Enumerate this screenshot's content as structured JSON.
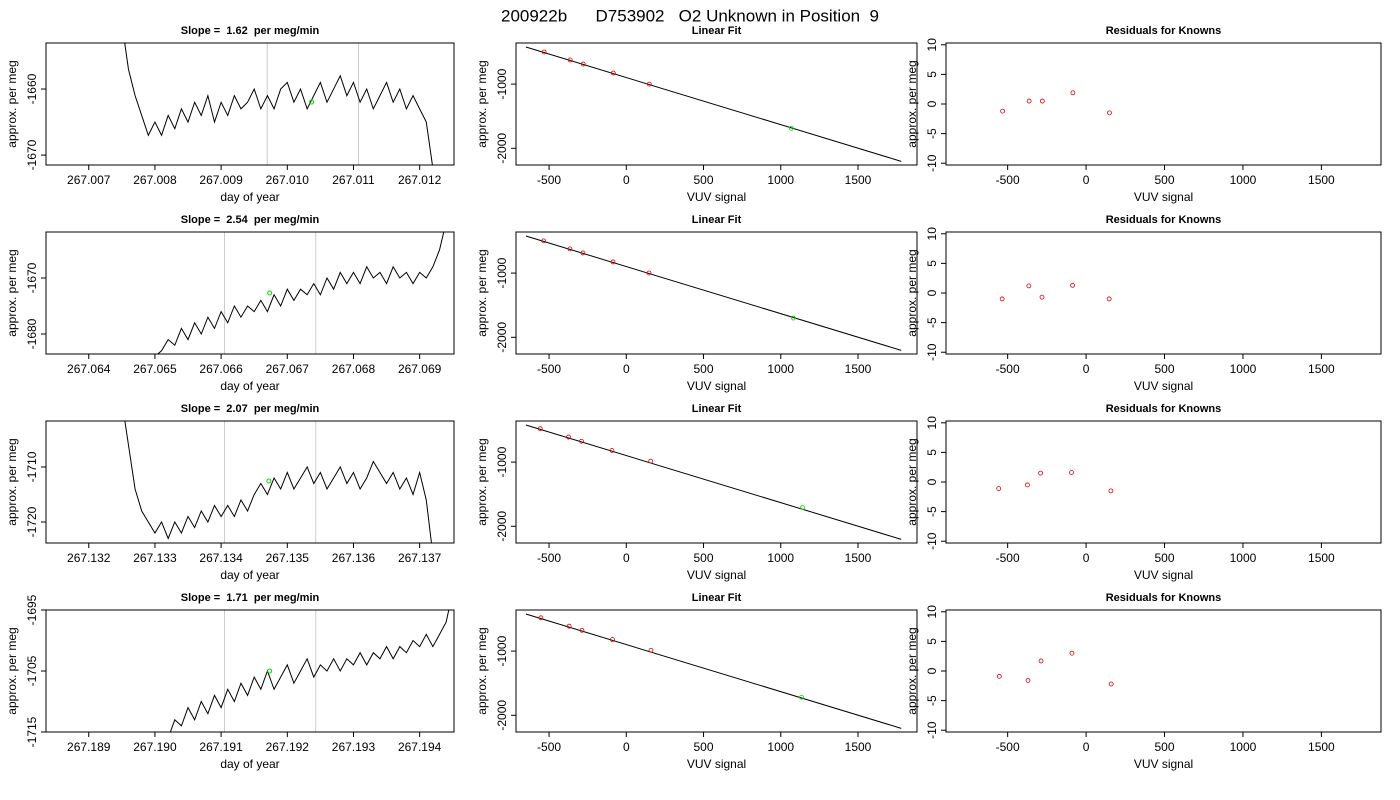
{
  "title": "200922b      D753902   O2 Unknown in Position  9",
  "chart_data": [
    {
      "type": "line",
      "title": "Slope =  1.62  per meg/min",
      "xlabel": "day of year",
      "ylabel": "approx. per meg",
      "x": [
        267.0075,
        267.0076,
        267.0077,
        267.0078,
        267.0079,
        267.008,
        267.0081,
        267.0082,
        267.0083,
        267.0084,
        267.0085,
        267.0086,
        267.0087,
        267.0088,
        267.0089,
        267.009,
        267.0091,
        267.0092,
        267.0093,
        267.0094,
        267.0095,
        267.0096,
        267.0097,
        267.0098,
        267.0099,
        267.01,
        267.0101,
        267.0102,
        267.0103,
        267.0104,
        267.0105,
        267.0106,
        267.0107,
        267.0108,
        267.0109,
        267.011,
        267.0111,
        267.0112,
        267.0113,
        267.0114,
        267.0115,
        267.0116,
        267.0117,
        267.0118,
        267.0119,
        267.012,
        267.0121,
        267.0122
      ],
      "series": [
        {
          "color": "#000000",
          "values": [
            -1650,
            -1657,
            -1661,
            -1664,
            -1667,
            -1665,
            -1667,
            -1664,
            -1666,
            -1663,
            -1665,
            -1662,
            -1664,
            -1661,
            -1665,
            -1662,
            -1664,
            -1661,
            -1663,
            -1662,
            -1660,
            -1663,
            -1661,
            -1663,
            -1660,
            -1659,
            -1662,
            -1660,
            -1663,
            -1661,
            -1659,
            -1662,
            -1660,
            -1658,
            -1661,
            -1659,
            -1662,
            -1660,
            -1663,
            -1661,
            -1659,
            -1662,
            -1660,
            -1663,
            -1661,
            -1663,
            -1665,
            -1672
          ]
        }
      ],
      "markers": {
        "color": "#00dd00",
        "x": [
          267.010367
        ],
        "values": [
          -1661.97
        ]
      },
      "vlines": [
        267.009696,
        267.011076
      ],
      "vline_color": "#cccccc",
      "xlim": [
        267.006354,
        267.012519
      ],
      "ylim": [
        -1671.5,
        -1653.03
      ],
      "xticks": [
        267.007,
        267.008,
        267.009,
        {
          "value": 267.01,
          "label": "267.010"
        },
        267.011,
        267.012
      ],
      "yticks": [
        -1660,
        -1670
      ]
    },
    {
      "type": "scatter",
      "title": "Linear Fit",
      "xlabel": "VUV signal",
      "ylabel": "approx. per meg",
      "fit_line": {
        "color": "#000000",
        "x": [
          -650,
          1780
        ],
        "values": [
          -422,
          -2203
        ]
      },
      "series": [
        {
          "color": "#dd0000",
          "x": [
            -532,
            -363,
            -279,
            -84,
            149
          ],
          "values": [
            -500,
            -625,
            -688,
            -828,
            -1000
          ]
        },
        {
          "color": "#00dd00",
          "x": [
            1069
          ],
          "values": [
            -1688
          ]
        }
      ],
      "xlim": [
        -714,
        1882
      ],
      "ylim": [
        -2260,
        -360
      ],
      "xticks": [
        -500,
        0,
        500,
        1000,
        1500
      ],
      "yticks": [
        -1000,
        -2000
      ]
    },
    {
      "type": "scatter",
      "title": "Residuals for Knowns",
      "xlabel": "VUV signal",
      "ylabel": "approx. per meg",
      "series": [
        {
          "color": "#dd0000",
          "x": [
            -532,
            -363,
            -279,
            -84,
            149
          ],
          "values": [
            -1.2,
            0.5,
            0.5,
            1.9,
            -1.5
          ]
        }
      ],
      "xlim": [
        -893,
        1880
      ],
      "ylim": [
        -10.3,
        10.3
      ],
      "xticks": [
        -500,
        0,
        500,
        1000,
        1500
      ],
      "yticks": [
        -10,
        -5,
        0,
        5,
        10
      ]
    },
    {
      "type": "line",
      "title": "Slope =  2.54  per meg/min",
      "xlabel": "day of year",
      "ylabel": "approx. per meg",
      "x": [
        267.065,
        267.0651,
        267.0652,
        267.0653,
        267.0654,
        267.0655,
        267.0656,
        267.0657,
        267.0658,
        267.0659,
        267.066,
        267.0661,
        267.0662,
        267.0663,
        267.0664,
        267.0665,
        267.0666,
        267.0667,
        267.0668,
        267.0669,
        267.067,
        267.0671,
        267.0672,
        267.0673,
        267.0674,
        267.0675,
        267.0676,
        267.0677,
        267.0678,
        267.0679,
        267.068,
        267.0681,
        267.0682,
        267.0683,
        267.0684,
        267.0685,
        267.0686,
        267.0687,
        267.0688,
        267.0689,
        267.069,
        267.0691,
        267.0692,
        267.0693,
        267.0694
      ],
      "series": [
        {
          "color": "#000000",
          "values": [
            -1684,
            -1683,
            -1681,
            -1682,
            -1679,
            -1681,
            -1678,
            -1680,
            -1677,
            -1679,
            -1676,
            -1678,
            -1675,
            -1677,
            -1675,
            -1676,
            -1674,
            -1676,
            -1673,
            -1675,
            -1672,
            -1674,
            -1672,
            -1673,
            -1671,
            -1673,
            -1670,
            -1672,
            -1669,
            -1671,
            -1669,
            -1671,
            -1668,
            -1670,
            -1669,
            -1671,
            -1668,
            -1670,
            -1669,
            -1671,
            -1669,
            -1670,
            -1668,
            -1665,
            -1660
          ]
        }
      ],
      "markers": {
        "color": "#00dd00",
        "x": [
          267.066734
        ],
        "values": [
          -1672.68
        ]
      },
      "vlines": [
        267.066051,
        267.06743
      ],
      "vline_color": "#cccccc",
      "xlim": [
        267.063354,
        267.069519
      ],
      "ylim": [
        -1683.57,
        -1661.79
      ],
      "xticks": [
        267.064,
        267.065,
        267.066,
        267.067,
        267.068,
        267.069
      ],
      "yticks": [
        -1670,
        -1680
      ]
    },
    {
      "type": "scatter",
      "title": "Linear Fit",
      "xlabel": "VUV signal",
      "ylabel": "approx. per meg",
      "fit_line": {
        "color": "#000000",
        "x": [
          -650,
          1780
        ],
        "values": [
          -422,
          -2203
        ]
      },
      "series": [
        {
          "color": "#dd0000",
          "x": [
            -535,
            -365,
            -281,
            -86,
            147
          ],
          "values": [
            -498,
            -623,
            -686,
            -826,
            -998
          ]
        },
        {
          "color": "#00dd00",
          "x": [
            1082
          ],
          "values": [
            -1700
          ]
        }
      ],
      "xlim": [
        -714,
        1882
      ],
      "ylim": [
        -2260,
        -360
      ],
      "xticks": [
        -500,
        0,
        500,
        1000,
        1500
      ],
      "yticks": [
        -1000,
        -2000
      ]
    },
    {
      "type": "scatter",
      "title": "Residuals for Knowns",
      "xlabel": "VUV signal",
      "ylabel": "approx. per meg",
      "series": [
        {
          "color": "#dd0000",
          "x": [
            -535,
            -365,
            -281,
            -86,
            147
          ],
          "values": [
            -1.0,
            1.2,
            -0.7,
            1.3,
            -1.0
          ]
        }
      ],
      "xlim": [
        -893,
        1880
      ],
      "ylim": [
        -10.3,
        10.3
      ],
      "xticks": [
        -500,
        0,
        500,
        1000,
        1500
      ],
      "yticks": [
        -10,
        -5,
        0,
        5,
        10
      ]
    },
    {
      "type": "line",
      "title": "Slope =  2.07  per meg/min",
      "xlabel": "day of year",
      "ylabel": "approx. per meg",
      "x": [
        267.1325,
        267.1326,
        267.1327,
        267.1328,
        267.1329,
        267.133,
        267.1331,
        267.1332,
        267.1333,
        267.1334,
        267.1335,
        267.1336,
        267.1337,
        267.1338,
        267.1339,
        267.134,
        267.1341,
        267.1342,
        267.1343,
        267.1344,
        267.1345,
        267.1346,
        267.1347,
        267.1348,
        267.1349,
        267.135,
        267.1351,
        267.1352,
        267.1353,
        267.1354,
        267.1355,
        267.1356,
        267.1357,
        267.1358,
        267.1359,
        267.136,
        267.1361,
        267.1362,
        267.1363,
        267.1364,
        267.1365,
        267.1366,
        267.1367,
        267.1368,
        267.1369,
        267.137,
        267.1371,
        267.1372
      ],
      "series": [
        {
          "color": "#000000",
          "values": [
            -1698,
            -1706,
            -1714,
            -1718,
            -1720,
            -1722,
            -1720,
            -1723,
            -1720,
            -1722,
            -1719,
            -1721,
            -1718,
            -1720,
            -1717,
            -1719,
            -1717,
            -1719,
            -1716,
            -1718,
            -1715,
            -1713,
            -1715,
            -1712,
            -1714,
            -1711,
            -1714,
            -1712,
            -1710,
            -1713,
            -1711,
            -1714,
            -1712,
            -1710,
            -1713,
            -1711,
            -1714,
            -1712,
            -1709,
            -1711,
            -1713,
            -1711,
            -1714,
            -1712,
            -1715,
            -1711,
            -1716,
            -1726
          ]
        }
      ],
      "markers": {
        "color": "#00dd00",
        "x": [
          267.134722
        ],
        "values": [
          -1712.55
        ]
      },
      "vlines": [
        267.134051,
        267.13543
      ],
      "vline_color": "#cccccc",
      "xlim": [
        267.131354,
        267.137519
      ],
      "ylim": [
        -1723.82,
        -1701.64
      ],
      "xticks": [
        267.132,
        267.133,
        267.134,
        267.135,
        267.136,
        267.137
      ],
      "yticks": [
        -1710,
        -1720
      ]
    },
    {
      "type": "scatter",
      "title": "Linear Fit",
      "xlabel": "VUV signal",
      "ylabel": "approx. per meg",
      "fit_line": {
        "color": "#000000",
        "x": [
          -650,
          1780
        ],
        "values": [
          -422,
          -2203
        ]
      },
      "series": [
        {
          "color": "#dd0000",
          "x": [
            -557,
            -374,
            -290,
            -93,
            158
          ],
          "values": [
            -480,
            -610,
            -675,
            -818,
            -985
          ]
        },
        {
          "color": "#00dd00",
          "x": [
            1141
          ],
          "values": [
            -1708
          ]
        }
      ],
      "xlim": [
        -714,
        1882
      ],
      "ylim": [
        -2260,
        -360
      ],
      "xticks": [
        -500,
        0,
        500,
        1000,
        1500
      ],
      "yticks": [
        -1000,
        -2000
      ]
    },
    {
      "type": "scatter",
      "title": "Residuals for Knowns",
      "xlabel": "VUV signal",
      "ylabel": "approx. per meg",
      "series": [
        {
          "color": "#dd0000",
          "x": [
            -557,
            -374,
            -290,
            -93,
            158
          ],
          "values": [
            -1.1,
            -0.5,
            1.5,
            1.6,
            -1.5
          ]
        }
      ],
      "xlim": [
        -893,
        1880
      ],
      "ylim": [
        -10.3,
        10.3
      ],
      "xticks": [
        -500,
        0,
        500,
        1000,
        1500
      ],
      "yticks": [
        -10,
        -5,
        0,
        5,
        10
      ]
    },
    {
      "type": "line",
      "title": "Slope =  1.71  per meg/min",
      "xlabel": "day of year",
      "ylabel": "approx. per meg",
      "x": [
        267.1902,
        267.1903,
        267.1904,
        267.1905,
        267.1906,
        267.1907,
        267.1908,
        267.1909,
        267.191,
        267.1911,
        267.1912,
        267.1913,
        267.1914,
        267.1915,
        267.1916,
        267.1917,
        267.1918,
        267.1919,
        267.192,
        267.1921,
        267.1922,
        267.1923,
        267.1924,
        267.1925,
        267.1926,
        267.1927,
        267.1928,
        267.1929,
        267.193,
        267.1931,
        267.1932,
        267.1933,
        267.1934,
        267.1935,
        267.1936,
        267.1937,
        267.1938,
        267.1939,
        267.194,
        267.1941,
        267.1942,
        267.1943,
        267.1944,
        267.1945
      ],
      "series": [
        {
          "color": "#000000",
          "values": [
            -1716,
            -1713,
            -1714,
            -1711,
            -1713,
            -1710,
            -1712,
            -1709,
            -1711,
            -1708,
            -1710,
            -1707,
            -1709,
            -1706,
            -1708,
            -1705,
            -1708,
            -1706,
            -1704,
            -1707,
            -1705,
            -1703,
            -1706,
            -1704,
            -1705,
            -1703,
            -1705,
            -1703,
            -1704,
            -1702,
            -1704,
            -1702,
            -1703,
            -1701,
            -1703,
            -1701,
            -1702,
            -1700,
            -1701,
            -1699,
            -1701,
            -1699,
            -1697,
            -1692
          ]
        }
      ],
      "markers": {
        "color": "#00dd00",
        "x": [
          267.191734
        ],
        "values": [
          -1705
        ]
      },
      "vlines": [
        267.191051,
        267.19243
      ],
      "vline_color": "#cccccc",
      "xlim": [
        267.188354,
        267.194519
      ],
      "ylim": [
        -1715,
        -1695
      ],
      "xticks": [
        267.189,
        {
          "value": 267.19,
          "label": "267.190"
        },
        267.191,
        267.192,
        267.193,
        267.194
      ],
      "yticks": [
        -1695,
        -1705,
        -1715
      ]
    },
    {
      "type": "scatter",
      "title": "Linear Fit",
      "xlabel": "VUV signal",
      "ylabel": "approx. per meg",
      "fit_line": {
        "color": "#000000",
        "x": [
          -650,
          1780
        ],
        "values": [
          -422,
          -2203
        ]
      },
      "series": [
        {
          "color": "#dd0000",
          "x": [
            -553,
            -370,
            -287,
            -90,
            160
          ],
          "values": [
            -482,
            -612,
            -677,
            -820,
            -987
          ]
        },
        {
          "color": "#00dd00",
          "x": [
            1134
          ],
          "values": [
            -1719
          ]
        }
      ],
      "xlim": [
        -714,
        1882
      ],
      "ylim": [
        -2260,
        -360
      ],
      "xticks": [
        -500,
        0,
        500,
        1000,
        1500
      ],
      "yticks": [
        -1000,
        -2000
      ]
    },
    {
      "type": "scatter",
      "title": "Residuals for Knowns",
      "xlabel": "VUV signal",
      "ylabel": "approx. per meg",
      "series": [
        {
          "color": "#dd0000",
          "x": [
            -553,
            -370,
            -287,
            -90,
            160
          ],
          "values": [
            -0.9,
            -1.6,
            1.7,
            3.0,
            -2.2
          ]
        }
      ],
      "xlim": [
        -893,
        1880
      ],
      "ylim": [
        -10.3,
        10.3
      ],
      "xticks": [
        -500,
        0,
        500,
        1000,
        1500
      ],
      "yticks": [
        -10,
        -5,
        0,
        5,
        10
      ]
    }
  ]
}
